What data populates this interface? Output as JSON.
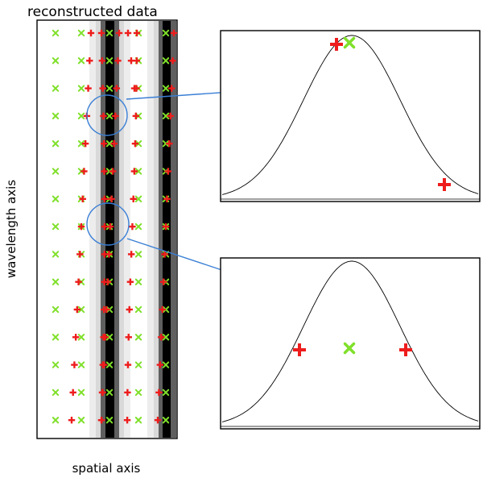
{
  "labels": {
    "title": "reconstructed data",
    "y_axis": "wavelength axis",
    "x_axis": "spatial axis"
  },
  "markers": {
    "green_symbol": "x",
    "red_symbol": "+"
  },
  "colors": {
    "green": "#7fe02a",
    "red": "#ee1c1c",
    "arrow": "#3a7fd5",
    "stripe_dark": "#000000",
    "stripe_mid": "#5f5f5f",
    "stripe_light": "#d9d9d9",
    "stripe_faint": "#ededed"
  },
  "panels": [
    {
      "name": "upper-profile",
      "green_at_peak": true
    },
    {
      "name": "lower-profile",
      "green_at_peak": true
    }
  ]
}
